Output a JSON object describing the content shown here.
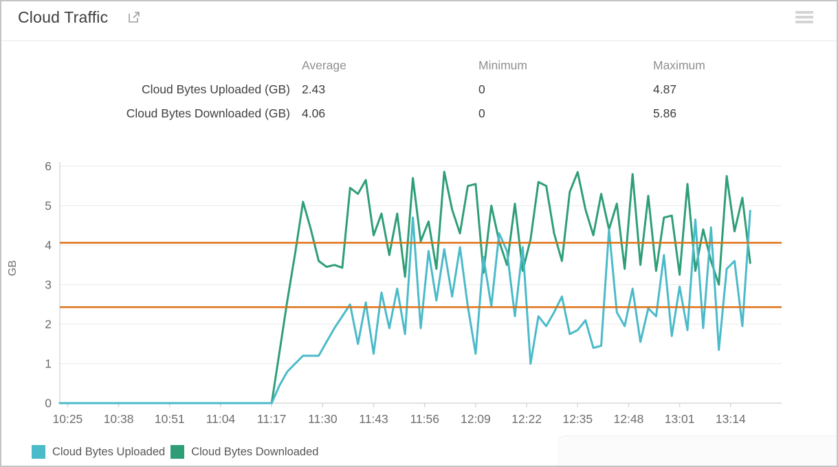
{
  "header": {
    "title": "Cloud Traffic",
    "external_link_icon": "open-in-new",
    "menu_icon": "hamburger-menu"
  },
  "stats": {
    "columns": [
      "Average",
      "Minimum",
      "Maximum"
    ],
    "rows": [
      {
        "label": "Cloud Bytes Uploaded (GB)",
        "average": "2.43",
        "minimum": "0",
        "maximum": "4.87"
      },
      {
        "label": "Cloud Bytes Downloaded (GB)",
        "average": "4.06",
        "minimum": "0",
        "maximum": "5.86"
      }
    ]
  },
  "legend": [
    {
      "label": "Cloud Bytes Uploaded",
      "color": "#4bbac9"
    },
    {
      "label": "Cloud Bytes Downloaded",
      "color": "#2f9e77"
    }
  ],
  "chart_data": {
    "type": "line",
    "title": "Cloud Traffic",
    "ylabel": "GB",
    "xlabel": "",
    "ylim": [
      0,
      6
    ],
    "y_ticks": [
      0,
      1,
      2,
      3,
      4,
      5,
      6
    ],
    "x_ticks": [
      "10:25",
      "10:38",
      "10:51",
      "11:04",
      "11:17",
      "11:30",
      "11:43",
      "11:56",
      "12:09",
      "12:22",
      "12:35",
      "12:48",
      "13:01",
      "13:14"
    ],
    "x_range": [
      "10:23",
      "13:27"
    ],
    "grid": "horizontal",
    "legend_position": "bottom-left",
    "reference_lines": [
      {
        "label": "Cloud Bytes Uploaded average",
        "value": 2.43,
        "color": "#dd7014"
      },
      {
        "label": "Cloud Bytes Downloaded average",
        "value": 4.06,
        "color": "#dd7014"
      }
    ],
    "x": [
      "10:23",
      "10:25",
      "10:27",
      "10:29",
      "10:31",
      "10:33",
      "10:35",
      "10:37",
      "10:39",
      "10:41",
      "10:43",
      "10:45",
      "10:47",
      "10:49",
      "10:51",
      "10:53",
      "10:55",
      "10:57",
      "10:59",
      "11:01",
      "11:03",
      "11:05",
      "11:07",
      "11:09",
      "11:11",
      "11:13",
      "11:15",
      "11:17",
      "11:19",
      "11:21",
      "11:23",
      "11:25",
      "11:27",
      "11:29",
      "11:31",
      "11:33",
      "11:35",
      "11:37",
      "11:39",
      "11:41",
      "11:43",
      "11:45",
      "11:47",
      "11:49",
      "11:51",
      "11:53",
      "11:55",
      "11:57",
      "11:59",
      "12:01",
      "12:03",
      "12:05",
      "12:07",
      "12:09",
      "12:11",
      "12:13",
      "12:15",
      "12:17",
      "12:19",
      "12:21",
      "12:23",
      "12:25",
      "12:27",
      "12:29",
      "12:31",
      "12:33",
      "12:35",
      "12:37",
      "12:39",
      "12:41",
      "12:43",
      "12:45",
      "12:47",
      "12:49",
      "12:51",
      "12:53",
      "12:55",
      "12:57",
      "12:59",
      "13:01",
      "13:03",
      "13:05",
      "13:07",
      "13:09",
      "13:11",
      "13:13",
      "13:15",
      "13:17",
      "13:19"
    ],
    "series": [
      {
        "name": "Cloud Bytes Uploaded",
        "color": "#4bbac9",
        "values": [
          0,
          0,
          0,
          0,
          0,
          0,
          0,
          0,
          0,
          0,
          0,
          0,
          0,
          0,
          0,
          0,
          0,
          0,
          0,
          0,
          0,
          0,
          0,
          0,
          0,
          0,
          0,
          0,
          0.45,
          0.8,
          1.0,
          1.2,
          1.2,
          1.2,
          1.55,
          1.9,
          2.2,
          2.5,
          1.5,
          2.55,
          1.25,
          2.8,
          1.9,
          2.9,
          1.75,
          4.7,
          1.9,
          3.85,
          2.6,
          3.9,
          2.7,
          3.95,
          2.45,
          1.25,
          3.7,
          2.45,
          4.3,
          3.85,
          2.2,
          3.95,
          1.0,
          2.2,
          1.95,
          2.3,
          2.7,
          1.75,
          1.85,
          2.1,
          1.4,
          1.45,
          4.4,
          2.3,
          1.95,
          2.9,
          1.55,
          2.4,
          2.2,
          3.75,
          1.7,
          2.95,
          1.85,
          4.65,
          1.9,
          4.45,
          1.35,
          3.4,
          3.6,
          1.95,
          4.87
        ]
      },
      {
        "name": "Cloud Bytes Downloaded",
        "color": "#2f9e77",
        "values": [
          0,
          0,
          0,
          0,
          0,
          0,
          0,
          0,
          0,
          0,
          0,
          0,
          0,
          0,
          0,
          0,
          0,
          0,
          0,
          0,
          0,
          0,
          0,
          0,
          0,
          0,
          0,
          0,
          1.3,
          2.6,
          3.8,
          5.1,
          4.4,
          3.6,
          3.45,
          3.5,
          3.43,
          5.45,
          5.3,
          5.65,
          4.25,
          4.8,
          3.75,
          4.8,
          3.2,
          5.7,
          4.1,
          4.6,
          3.4,
          5.86,
          4.9,
          4.3,
          5.5,
          5.55,
          3.3,
          5.0,
          4.1,
          3.5,
          5.05,
          3.35,
          4.15,
          5.6,
          5.5,
          4.3,
          3.6,
          5.35,
          5.85,
          4.9,
          4.25,
          5.3,
          4.4,
          5.05,
          3.4,
          5.8,
          3.5,
          5.25,
          3.35,
          4.7,
          4.75,
          3.25,
          5.55,
          3.35,
          4.4,
          3.6,
          3.0,
          5.75,
          4.35,
          5.2,
          3.55
        ]
      }
    ]
  },
  "colors": {
    "uploaded": "#4bbac9",
    "downloaded": "#2f9e77",
    "average_line": "#dd7014",
    "grid": "#e9e9e9",
    "axis": "#d8d8d8",
    "tick_text": "#6d6d6d"
  }
}
